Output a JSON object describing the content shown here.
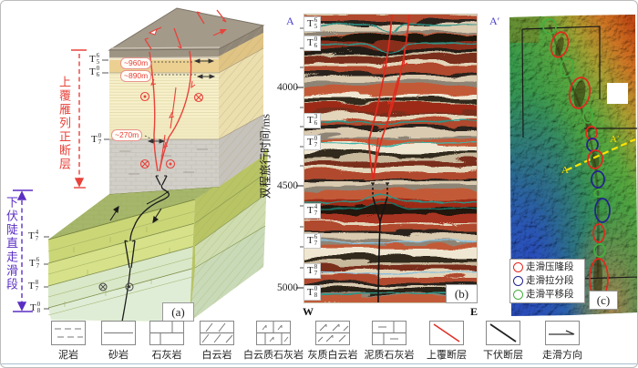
{
  "panel_a": {
    "label": "(a)",
    "upper_fault_tag": "上覆雁列正断层",
    "lower_fault_tag": "下伏陡直走滑段",
    "horizon_labels": [
      {
        "t": "T",
        "sup": "6",
        "sub": "5"
      },
      {
        "t": "T",
        "sup": "0",
        "sub": "6"
      },
      {
        "t": "T",
        "sup": "0",
        "sub": "7"
      },
      {
        "t": "T",
        "sup": "4",
        "sub": "7"
      },
      {
        "t": "T",
        "sup": "6",
        "sub": "7"
      },
      {
        "t": "T",
        "sup": "8",
        "sub": "7"
      },
      {
        "t": "T",
        "sup": "0",
        "sub": "8"
      }
    ],
    "depth_marks": [
      "~960m",
      "~890m",
      "~270m"
    ]
  },
  "panel_b": {
    "label": "(b)",
    "section_start": "A",
    "section_end": "A′",
    "compass_west": "W",
    "compass_east": "E",
    "y_axis_label": "双程旅行时间/ms",
    "y_ticks": [
      "4000",
      "4500",
      "5000"
    ],
    "horizon_labels": [
      {
        "t": "T",
        "sup": "6",
        "sub": "5"
      },
      {
        "t": "T",
        "sup": "0",
        "sub": "6"
      },
      {
        "t": "T",
        "sup": "3",
        "sub": "6"
      },
      {
        "t": "T",
        "sup": "0",
        "sub": "7"
      },
      {
        "t": "T",
        "sup": "4",
        "sub": "7"
      },
      {
        "t": "T",
        "sup": "6",
        "sub": "7"
      },
      {
        "t": "T",
        "sup": "8",
        "sub": "7"
      },
      {
        "t": "T",
        "sup": "0",
        "sub": "8"
      }
    ]
  },
  "panel_c": {
    "label": "(c)",
    "line_start": "A",
    "line_end": "A′",
    "legend": [
      {
        "symbol": "red-ellipse",
        "color": "#e5281c",
        "label": "走滑压隆段"
      },
      {
        "symbol": "blue-ellipse",
        "color": "#22228f",
        "label": "走滑拉分段"
      },
      {
        "symbol": "green-ellipse",
        "color": "#45ae3f",
        "label": "走滑平移段"
      }
    ]
  },
  "lithology_legend": [
    {
      "pattern": "mudstone",
      "label": "泥岩"
    },
    {
      "pattern": "sandstone",
      "label": "砂岩"
    },
    {
      "pattern": "limestone",
      "label": "石灰岩"
    },
    {
      "pattern": "dolomite",
      "label": "白云岩"
    },
    {
      "pattern": "dolomitic-limestone",
      "label": "白云质石灰岩"
    },
    {
      "pattern": "calcareous-dolomite",
      "label": "灰质白云岩"
    },
    {
      "pattern": "argillaceous-limestone",
      "label": "泥质石灰岩"
    },
    {
      "pattern": "overlying-fault",
      "label": "上覆断层"
    },
    {
      "pattern": "underlying-fault",
      "label": "下伏断层"
    },
    {
      "pattern": "strike-slip-direction",
      "label": "走滑方向"
    }
  ]
}
